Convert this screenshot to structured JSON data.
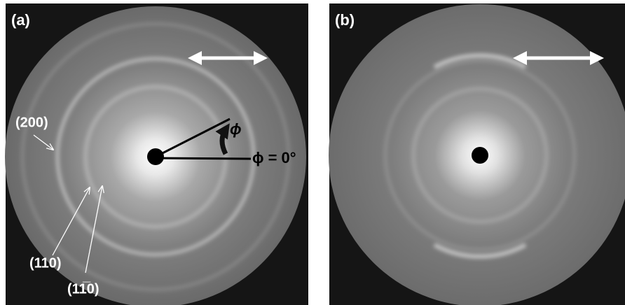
{
  "panels": [
    {
      "label": "(a)",
      "phi": "ϕ",
      "phi_zero": "ϕ = 0°",
      "reflections": [
        "(200)",
        "(110)",
        "(11̅0)"
      ]
    },
    {
      "label": "(b)"
    }
  ]
}
